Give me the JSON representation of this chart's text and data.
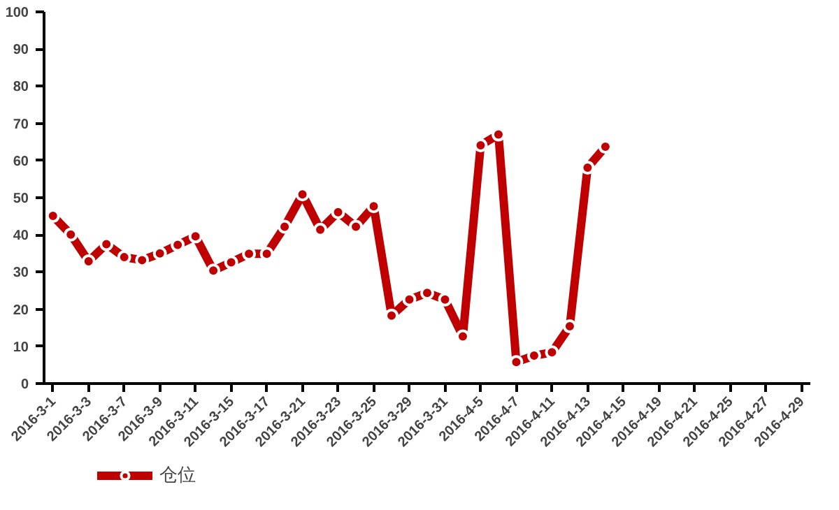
{
  "chart_data": {
    "type": "line",
    "categories": [
      "2016-3-1",
      null,
      "2016-3-3",
      null,
      "2016-3-7",
      null,
      "2016-3-9",
      null,
      "2016-3-11",
      null,
      "2016-3-15",
      null,
      "2016-3-17",
      null,
      "2016-3-21",
      null,
      "2016-3-23",
      null,
      "2016-3-25",
      null,
      "2016-3-29",
      null,
      "2016-3-31",
      null,
      "2016-4-5",
      null,
      "2016-4-7",
      null,
      "2016-4-11",
      null,
      "2016-4-13",
      null,
      "2016-4-15",
      null,
      "2016-4-19",
      null,
      "2016-4-21",
      null,
      "2016-4-25",
      null,
      "2016-4-27",
      null,
      "2016-4-29"
    ],
    "series": [
      {
        "name": "仓位",
        "color": "#c00000",
        "values": [
          45.1,
          40.1,
          32.9,
          37.5,
          34.0,
          33.2,
          35.0,
          37.3,
          39.6,
          30.4,
          32.6,
          34.9,
          34.9,
          42.2,
          50.9,
          41.4,
          46.1,
          42.2,
          47.7,
          18.3,
          22.6,
          24.4,
          22.6,
          12.7,
          64.1,
          67.0,
          5.8,
          7.5,
          8.4,
          15.4,
          58.1,
          63.7,
          null,
          null,
          null,
          null,
          null,
          null,
          null,
          null,
          null,
          null,
          null
        ]
      }
    ],
    "ylim": [
      0,
      100
    ],
    "yticks": [
      0,
      10,
      20,
      30,
      40,
      50,
      60,
      70,
      80,
      90,
      100
    ],
    "grid": false,
    "legend": "bottom left",
    "marker": "circle",
    "line_style": "solid"
  }
}
